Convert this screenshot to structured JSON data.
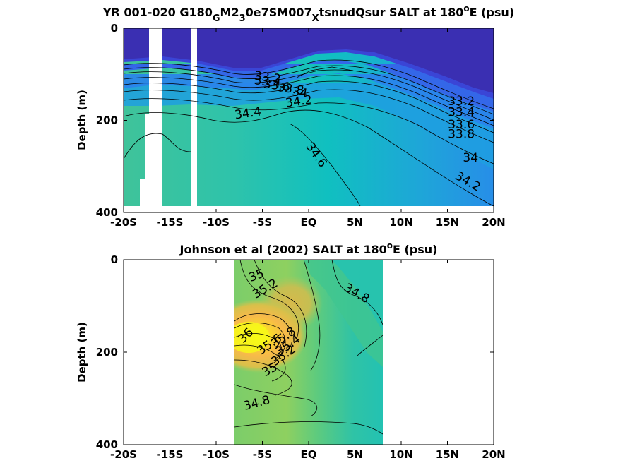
{
  "chart_data": [
    {
      "type": "heatmap",
      "title_segments": [
        {
          "text": "YR 001-020 G180",
          "shift": "base"
        },
        {
          "text": "G",
          "shift": "sub"
        },
        {
          "text": "M2",
          "shift": "base"
        },
        {
          "text": "3",
          "shift": "sub"
        },
        {
          "text": "0e7SM007",
          "shift": "base"
        },
        {
          "text": "X",
          "shift": "sub"
        },
        {
          "text": "tsnudQsur SALT at 180",
          "shift": "base"
        },
        {
          "text": "o",
          "shift": "super"
        },
        {
          "text": "E (psu)",
          "shift": "base"
        }
      ],
      "xlabel": "",
      "ylabel": "Depth (m)",
      "xlim": [
        -20,
        20
      ],
      "ylim": [
        400,
        0
      ],
      "x_ticks": [
        -20,
        -15,
        -10,
        -5,
        0,
        5,
        10,
        15,
        20
      ],
      "x_tick_labels": [
        "-20S",
        "-15S",
        "-10S",
        "-5S",
        "EQ",
        "5N",
        "10N",
        "15N",
        "20N"
      ],
      "y_ticks": [
        0,
        200,
        400
      ],
      "y_tick_labels": [
        "0",
        "200",
        "400"
      ],
      "contour_levels": [
        33,
        33.2,
        33.4,
        33.6,
        33.8,
        34,
        34.2,
        34.4,
        34.6
      ],
      "contour_labels": [
        {
          "text": "33.2",
          "lon": -4.5,
          "depth": 115,
          "angle": 8
        },
        {
          "text": "33.4",
          "lon": -4.5,
          "depth": 125,
          "angle": 8
        },
        {
          "text": "33.6",
          "lon": -3.5,
          "depth": 133,
          "angle": 8
        },
        {
          "text": "33.8",
          "lon": -2.0,
          "depth": 140,
          "angle": 8
        },
        {
          "text": "34",
          "lon": -1.0,
          "depth": 148,
          "angle": 8
        },
        {
          "text": "34.2",
          "lon": -1.0,
          "depth": 167,
          "angle": -8
        },
        {
          "text": "34.4",
          "lon": -6.5,
          "depth": 193,
          "angle": -8
        },
        {
          "text": "34.6",
          "lon": 0.5,
          "depth": 280,
          "angle": 55
        },
        {
          "text": "33.2",
          "lon": 16.5,
          "depth": 167,
          "angle": 0
        },
        {
          "text": "33.4",
          "lon": 16.5,
          "depth": 191,
          "angle": 0
        },
        {
          "text": "33.6",
          "lon": 16.5,
          "depth": 218,
          "angle": 0
        },
        {
          "text": "33.8",
          "lon": 16.5,
          "depth": 238,
          "angle": 0
        },
        {
          "text": "34",
          "lon": 17.5,
          "depth": 290,
          "angle": 0
        },
        {
          "text": "34.2",
          "lon": 17.0,
          "depth": 340,
          "angle": 30
        }
      ]
    },
    {
      "type": "heatmap",
      "title_segments": [
        {
          "text": "Johnson et al (2002) SALT at 180",
          "shift": "base"
        },
        {
          "text": "o",
          "shift": "super"
        },
        {
          "text": "E (psu)",
          "shift": "base"
        }
      ],
      "xlabel": "",
      "ylabel": "Depth (m)",
      "xlim": [
        -20,
        20
      ],
      "ylim": [
        400,
        0
      ],
      "x_ticks": [
        -20,
        -15,
        -10,
        -5,
        0,
        5,
        10,
        15,
        20
      ],
      "x_tick_labels": [
        "-20S",
        "-15S",
        "-10S",
        "-5S",
        "EQ",
        "5N",
        "10N",
        "15N",
        "20N"
      ],
      "y_ticks": [
        0,
        200,
        400
      ],
      "y_tick_labels": [
        "0",
        "200",
        "400"
      ],
      "data_lon_range": [
        -8,
        8
      ],
      "contour_levels": [
        34.8,
        35,
        35.2,
        35.4,
        35.6,
        35.8,
        36
      ],
      "contour_labels": [
        {
          "text": "35",
          "lon": -5.5,
          "depth": 42,
          "angle": -20
        },
        {
          "text": "35.2",
          "lon": -4.5,
          "depth": 70,
          "angle": -30
        },
        {
          "text": "34.8",
          "lon": 5.0,
          "depth": 80,
          "angle": 30
        },
        {
          "text": "36",
          "lon": -6.5,
          "depth": 170,
          "angle": -45
        },
        {
          "text": "35.8",
          "lon": -2.5,
          "depth": 175,
          "angle": -35
        },
        {
          "text": "35.6",
          "lon": -4.0,
          "depth": 190,
          "angle": -35
        },
        {
          "text": "35.4",
          "lon": -2.0,
          "depth": 192,
          "angle": -35
        },
        {
          "text": "35.2",
          "lon": -2.5,
          "depth": 214,
          "angle": -35
        },
        {
          "text": "35",
          "lon": -4.0,
          "depth": 245,
          "angle": -30
        },
        {
          "text": "34.8",
          "lon": -5.5,
          "depth": 318,
          "angle": -15
        }
      ]
    }
  ]
}
